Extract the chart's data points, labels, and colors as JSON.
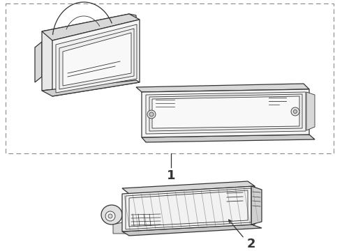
{
  "bg_color": "#ffffff",
  "line_color": "#333333",
  "fill_white": "#ffffff",
  "fill_light": "#f0f0f0",
  "fill_mid": "#e0e0e0",
  "label1": "1",
  "label2": "2",
  "figsize": [
    4.9,
    3.6
  ],
  "dpi": 100
}
